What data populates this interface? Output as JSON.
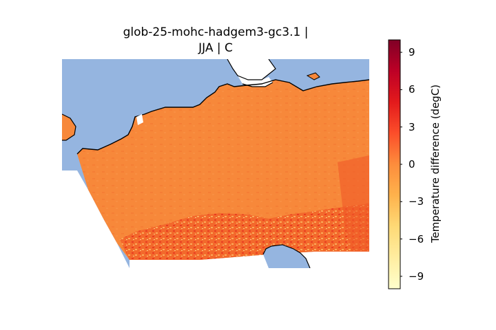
{
  "title": "glob-25-mohc-hadgem3-gc3.1 |\nJJA | C",
  "colorbar": {
    "label": "Temperature difference (degC)",
    "min": -10,
    "max": 10,
    "ticks": [
      {
        "value": 9,
        "label": "9"
      },
      {
        "value": 6,
        "label": "6"
      },
      {
        "value": 3,
        "label": "3"
      },
      {
        "value": 0,
        "label": "0"
      },
      {
        "value": -3,
        "label": "−3"
      },
      {
        "value": -6,
        "label": "−6"
      },
      {
        "value": -9,
        "label": "−9"
      }
    ],
    "colormap": "YlOrRd"
  },
  "map": {
    "ocean_color": "#95b5e0",
    "land_outside_color": "#ffffff",
    "dominant_field_color": "#f7883a"
  }
}
